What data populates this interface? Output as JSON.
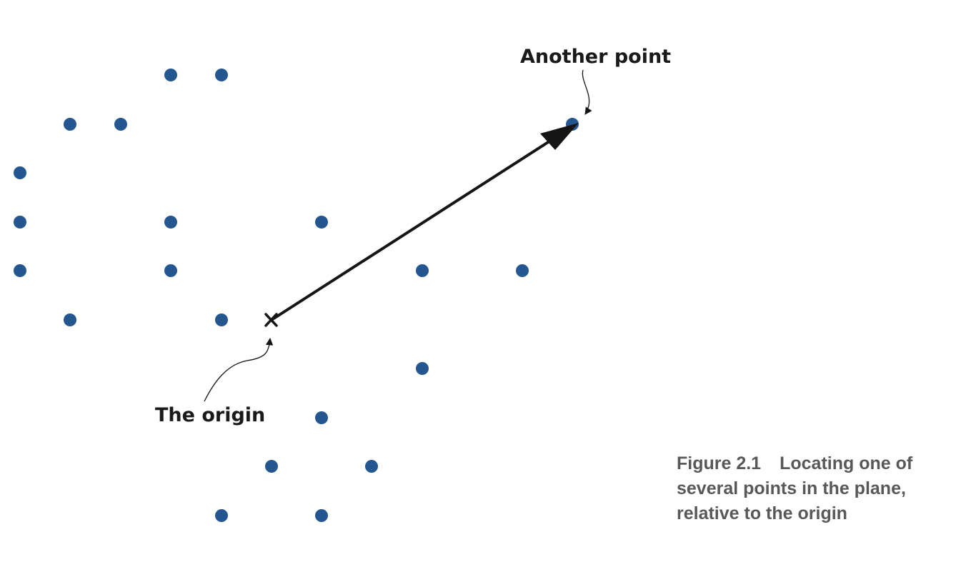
{
  "labels": {
    "another_point": "Another point",
    "origin": "The origin"
  },
  "caption": {
    "figure_number": "Figure 2.1",
    "text": "Locating one of several points in the plane, relative to the origin"
  },
  "colors": {
    "point": "#24568f",
    "arrow": "#151515",
    "caption": "#585858"
  },
  "icons": {
    "origin_marker": "x-mark-icon"
  }
}
